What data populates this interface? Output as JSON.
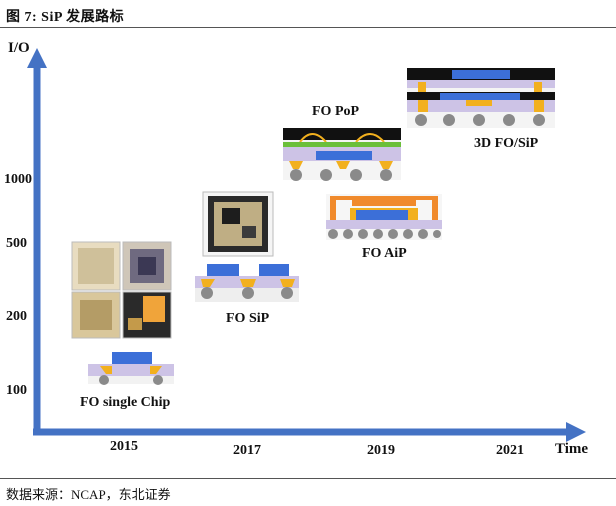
{
  "figure": {
    "title": "图  7:  SiP 发展路标"
  },
  "axes": {
    "y_title": "I/O",
    "x_title": "Time",
    "y_ticks": [
      "1000",
      "500",
      "200",
      "100"
    ],
    "x_ticks": [
      "2015",
      "2017",
      "2019",
      "2021"
    ]
  },
  "stages": [
    {
      "label": "FO single Chip"
    },
    {
      "label": "FO SiP"
    },
    {
      "label": "FO AiP"
    },
    {
      "label": "FO PoP"
    },
    {
      "label": "3D FO/SiP"
    }
  ],
  "source": "数据来源：NCAP，东北证券",
  "colors": {
    "axis": "#4472c4",
    "die_blue": "#3c6fd8",
    "bump_gold": "#f2b01e",
    "ball_gray": "#8a8a8a",
    "mold_black": "#111111",
    "substrate_lavender": "#cdc3e6",
    "pcb_green": "#6bbf3a",
    "antenna_orange": "#f08a2c"
  }
}
